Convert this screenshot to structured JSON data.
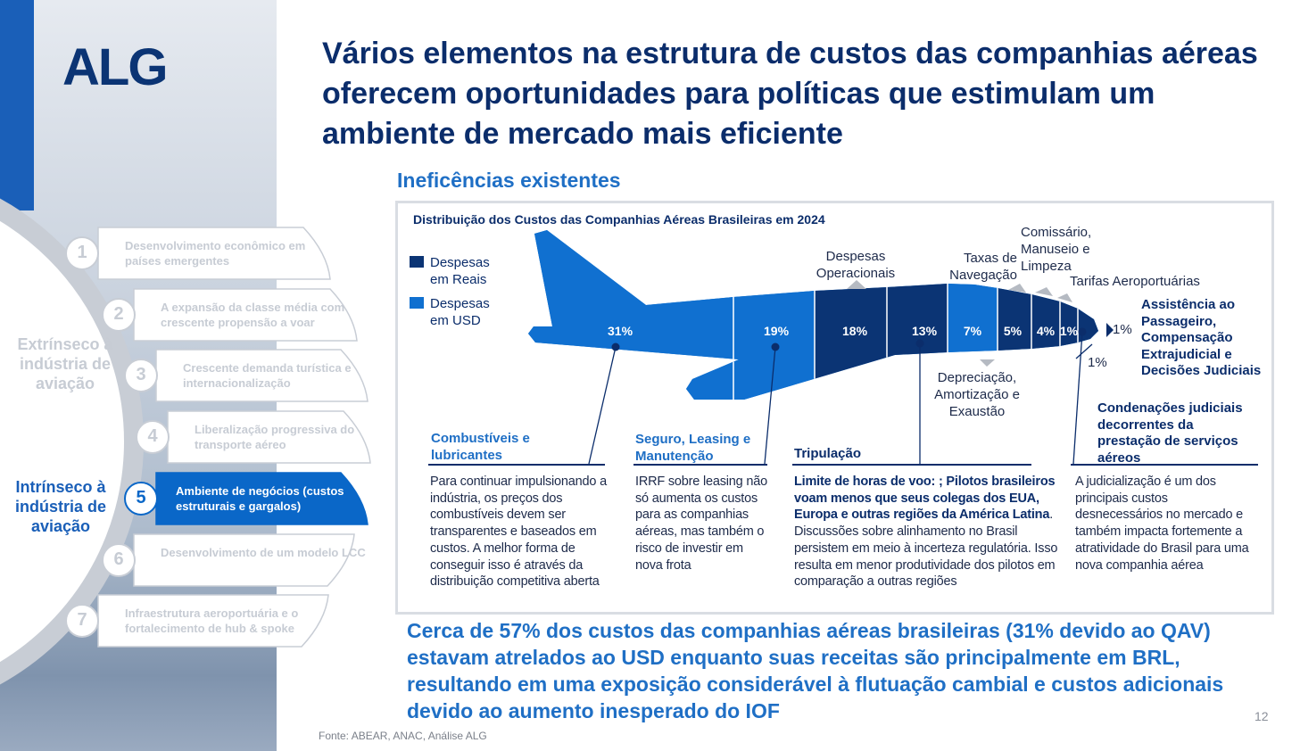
{
  "logo": "ALG",
  "title": "Vários elementos na estrutura de custos das companhias aéreas oferecem oportunidades para políticas que estimulam um ambiente de mercado mais eficiente",
  "subheading": "Ineficências existentes",
  "sidebar": {
    "group_extrinsic": "Extrínseco à indústria de aviação",
    "group_intrinsic": "Intrínseco à indústria de aviação",
    "items": [
      {
        "num": "1",
        "label": "Desenvolvimento econômico em países emergentes",
        "active": false
      },
      {
        "num": "2",
        "label": "A expansão da classe média com crescente propensão a voar",
        "active": false
      },
      {
        "num": "3",
        "label": "Crescente demanda turística e internacionalização",
        "active": false
      },
      {
        "num": "4",
        "label": "Liberalização progressiva do transporte aéreo",
        "active": false
      },
      {
        "num": "5",
        "label": "Ambiente de negócios (custos estruturais e gargalos)",
        "active": true
      },
      {
        "num": "6",
        "label": "Desenvolvimento de um modelo LCC",
        "active": false
      },
      {
        "num": "7",
        "label": "Infraestrutura aeroportuária e o fortalecimento de hub & spoke",
        "active": false
      }
    ]
  },
  "diagram": {
    "title": "Distribuição dos Custos das Companhias Aéreas Brasileiras em 2024",
    "legend": [
      {
        "label": "Despesas em Reais",
        "color": "#0b3474"
      },
      {
        "label": "Despesas em USD",
        "color": "#1070d0"
      }
    ],
    "segments": [
      {
        "value": "31%",
        "currency": "USD"
      },
      {
        "value": "19%",
        "currency": "USD"
      },
      {
        "value": "18%",
        "currency": "BRL"
      },
      {
        "value": "13%",
        "currency": "BRL"
      },
      {
        "value": "7%",
        "currency": "USD"
      },
      {
        "value": "5%",
        "currency": "BRL"
      },
      {
        "value": "4%",
        "currency": "BRL"
      },
      {
        "value": "1%",
        "currency": "BRL"
      },
      {
        "value": "1%",
        "currency": "BRL"
      }
    ],
    "labels": {
      "operacionais": "Despesas Operacionais",
      "navegacao": "Taxas de Navegação",
      "comissario": "Comissário, Manuseio e Limpeza",
      "tarifas": "Tarifas Aeroportuárias",
      "assistencia": "Assistência ao Passageiro, Compensação Extrajudicial e Decisões Judiciais",
      "assistencia_pct": "1%",
      "condenacoes_pct": "1%",
      "depreciacao": "Depreciação, Amortização e Exaustão"
    },
    "columns": [
      {
        "heading": "Combustíveis e lubricantes",
        "text": "Para continuar impulsionando a indústria, os preços dos combustíveis devem ser transparentes e baseados em custos. A melhor forma de conseguir isso é através da distribuição competitiva aberta"
      },
      {
        "heading": "Seguro, Leasing e Manutenção",
        "text": "IRRF sobre leasing não só aumenta os custos para as companhias aéreas, mas também o risco de investir em nova frota"
      },
      {
        "heading": "Tripulação",
        "bold_text": "Limite de horas de voo: ; Pilotos brasileiros voam menos que seus colegas dos EUA, Europa e outras regiões da América Latina",
        "text": ". Discussões sobre alinhamento no Brasil persistem em meio à incerteza regulatória. Isso resulta em menor produtividade dos pilotos em comparação a outras regiões"
      },
      {
        "heading": "Condenações judiciais decorrentes da prestação de serviços aéreos",
        "text": "A judicialização é um dos principais custos desnecessários no mercado e também impacta fortemente a atratividade do Brasil para uma nova companhia aérea"
      }
    ]
  },
  "summary": "Cerca de 57% dos custos das companhias aéreas brasileiras (31% devido ao QAV) estavam atrelados ao USD enquanto suas receitas são principalmente em BRL, resultando em uma exposição considerável à flutuação cambial e custos adicionais devido ao aumento inesperado do IOF",
  "page_number": "12",
  "source": "Fonte: ABEAR, ANAC, Análise ALG"
}
